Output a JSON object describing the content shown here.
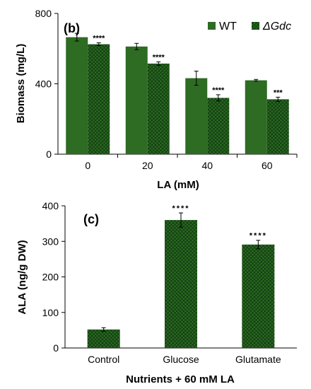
{
  "colors": {
    "wt": "#2e6b23",
    "mutant": "#2e6b23",
    "hatch_line": "#103d10",
    "axis": "#000000"
  },
  "chart_data": [
    {
      "type": "bar",
      "panel_label": "(b)",
      "xlabel": "LA (mM)",
      "ylabel": "Biomass (mg/L)",
      "ylim": [
        0,
        800
      ],
      "yticks": [
        "0",
        "400",
        "800"
      ],
      "categories": [
        "0",
        "20",
        "40",
        "60"
      ],
      "legend_placement": "top-right",
      "series": [
        {
          "name": "WT",
          "pattern": "solid",
          "values": [
            665,
            612,
            432,
            420
          ],
          "errors": [
            22,
            18,
            40,
            5
          ]
        },
        {
          "name": "ΔGdc",
          "pattern": "crosshatch",
          "values": [
            625,
            515,
            320,
            312
          ],
          "errors": [
            8,
            10,
            18,
            12
          ]
        }
      ],
      "annotations": [
        {
          "category": "0",
          "series": "ΔGdc",
          "text": "****"
        },
        {
          "category": "20",
          "series": "ΔGdc",
          "text": "****"
        },
        {
          "category": "40",
          "series": "ΔGdc",
          "text": "****"
        },
        {
          "category": "60",
          "series": "ΔGdc",
          "text": "***"
        }
      ]
    },
    {
      "type": "bar",
      "panel_label": "(c)",
      "xlabel": "Nutrients + 60 mM LA",
      "ylabel": "ALA (ng/g DW)",
      "ylim": [
        0,
        400
      ],
      "yticks": [
        "0",
        "100",
        "200",
        "300",
        "400"
      ],
      "categories": [
        "Control",
        "Glucose",
        "Glutamate"
      ],
      "series": [
        {
          "name": "",
          "pattern": "crosshatch",
          "values": [
            52,
            360,
            291
          ],
          "errors": [
            5,
            20,
            12
          ]
        }
      ],
      "annotations": [
        {
          "category": "Glucose",
          "text": "****"
        },
        {
          "category": "Glutamate",
          "text": "****"
        }
      ]
    }
  ]
}
